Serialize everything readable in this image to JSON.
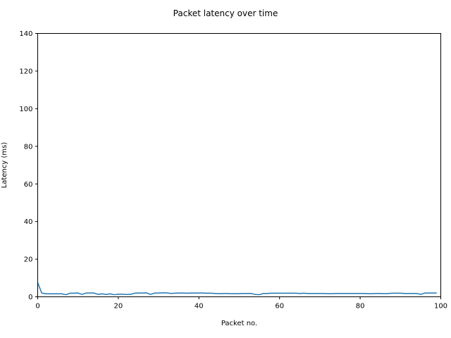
{
  "chart_data": {
    "type": "line",
    "title": "Packet latency over time",
    "xlabel": "Packet no.",
    "ylabel": "Latency (ms)",
    "xlim": [
      0,
      100
    ],
    "ylim": [
      0,
      140
    ],
    "xticks": [
      0,
      20,
      40,
      60,
      80,
      100
    ],
    "yticks": [
      0,
      20,
      40,
      60,
      80,
      100,
      120,
      140
    ],
    "grid": false,
    "colors": {
      "line": "#1f77b4",
      "axes": "#000000",
      "background": "#ffffff"
    },
    "series": [
      {
        "x": [
          0,
          1,
          2,
          3,
          4,
          5,
          6,
          7,
          8,
          9,
          10,
          11,
          12,
          13,
          14,
          15,
          16,
          17,
          18,
          19,
          20,
          21,
          22,
          23,
          24,
          25,
          26,
          27,
          28,
          29,
          30,
          31,
          32,
          33,
          34,
          35,
          36,
          37,
          38,
          39,
          40,
          41,
          42,
          43,
          44,
          45,
          46,
          47,
          48,
          49,
          50,
          51,
          52,
          53,
          54,
          55,
          56,
          57,
          58,
          59,
          60,
          61,
          62,
          63,
          64,
          65,
          66,
          67,
          68,
          69,
          70,
          71,
          72,
          73,
          74,
          75,
          76,
          77,
          78,
          79,
          80,
          81,
          82,
          83,
          84,
          85,
          86,
          87,
          88,
          89,
          90,
          91,
          92,
          93,
          94,
          95,
          96,
          97,
          98,
          99
        ],
        "values": [
          7.5,
          2.0,
          1.6,
          1.6,
          1.6,
          1.6,
          1.6,
          1.1,
          1.9,
          1.9,
          2.0,
          1.3,
          2.0,
          2.0,
          2.0,
          1.3,
          1.6,
          1.2,
          1.6,
          1.1,
          1.4,
          1.4,
          1.2,
          1.3,
          1.9,
          2.0,
          2.0,
          2.1,
          1.3,
          2.0,
          2.0,
          2.1,
          2.1,
          1.8,
          1.9,
          2.0,
          2.0,
          1.9,
          2.0,
          2.0,
          2.0,
          2.0,
          1.9,
          1.9,
          1.8,
          1.7,
          1.8,
          1.8,
          1.7,
          1.7,
          1.7,
          1.8,
          1.8,
          1.8,
          1.2,
          1.1,
          1.8,
          1.8,
          1.9,
          1.9,
          1.9,
          1.9,
          1.9,
          1.9,
          1.9,
          1.8,
          1.9,
          1.8,
          1.8,
          1.8,
          1.8,
          1.8,
          1.7,
          1.7,
          1.8,
          1.8,
          1.8,
          1.8,
          1.8,
          1.8,
          1.8,
          1.8,
          1.7,
          1.7,
          1.8,
          1.8,
          1.7,
          1.8,
          1.9,
          1.9,
          1.9,
          1.8,
          1.8,
          1.8,
          1.8,
          1.3,
          2.0,
          2.0,
          2.0,
          2.0
        ]
      }
    ]
  }
}
